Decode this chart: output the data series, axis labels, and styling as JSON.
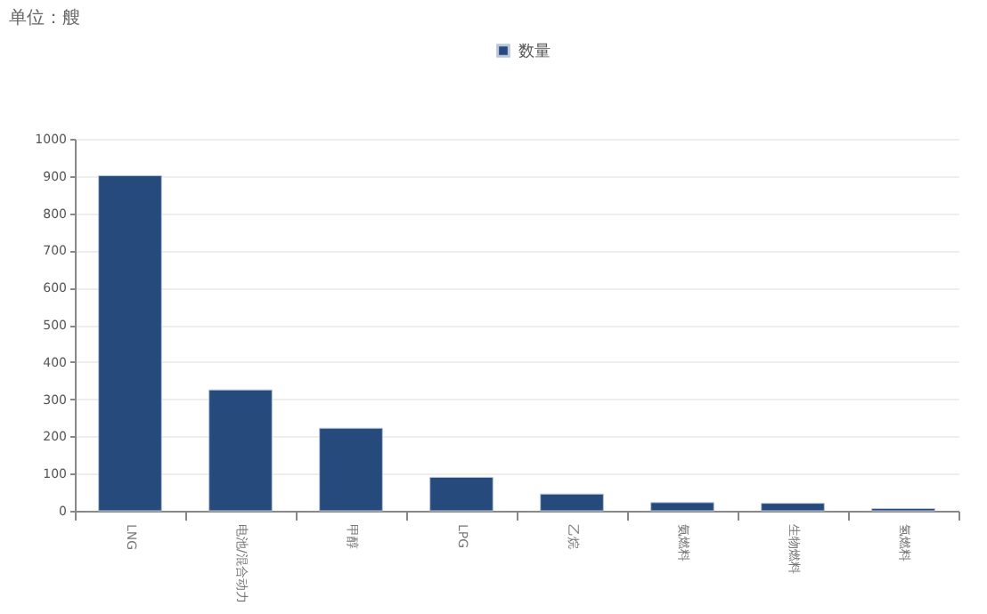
{
  "chart_data": {
    "type": "bar",
    "title": "单位：艘",
    "categories": [
      "LNG",
      "电池/混合动力",
      "甲醇",
      "LPG",
      "乙烷",
      "氨燃料",
      "生物燃料",
      "氢燃料"
    ],
    "series": [
      {
        "name": "数量",
        "color": "#264a7c",
        "values": [
          901,
          325,
          222,
          90,
          45,
          22,
          20,
          6
        ]
      }
    ],
    "ylim": [
      0,
      1000
    ],
    "yticks": [
      0,
      100,
      200,
      300,
      400,
      500,
      600,
      700,
      800,
      900,
      1000
    ],
    "grid": "y",
    "legend": "top"
  }
}
